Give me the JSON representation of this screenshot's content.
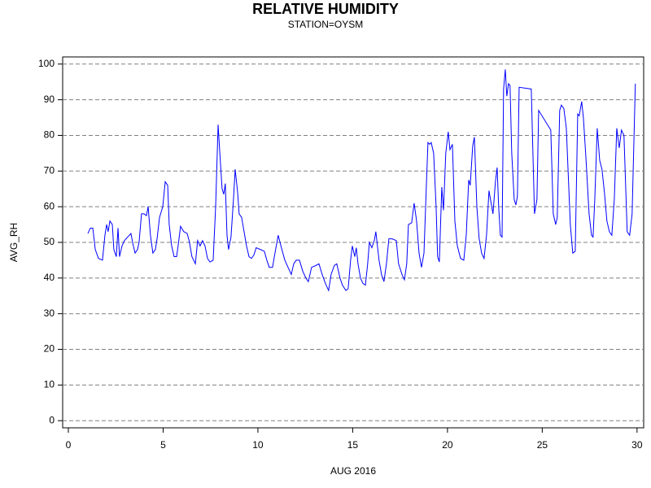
{
  "chart_data": {
    "type": "line",
    "title": "RELATIVE HUMIDITY",
    "subtitle": "STATION=OYSM",
    "x_label": "AUG 2016",
    "y_label": "AVG_RH",
    "xlim": [
      -0.3,
      30.35
    ],
    "ylim": [
      -2,
      102
    ],
    "xticks": [
      0,
      5,
      10,
      15,
      20,
      25,
      30
    ],
    "yticks": [
      0,
      10,
      20,
      30,
      40,
      50,
      60,
      70,
      80,
      90,
      100
    ],
    "grid": true,
    "series": [
      {
        "color": "#0000ff",
        "x": [
          1.03,
          1.16,
          1.29,
          1.42,
          1.59,
          1.8,
          1.93,
          2.02,
          2.1,
          2.19,
          2.32,
          2.4,
          2.53,
          2.62,
          2.7,
          2.83,
          2.96,
          3.13,
          3.3,
          3.43,
          3.52,
          3.65,
          3.73,
          3.86,
          3.99,
          4.12,
          4.21,
          4.33,
          4.46,
          4.59,
          4.68,
          4.81,
          4.98,
          5.11,
          5.24,
          5.32,
          5.45,
          5.58,
          5.71,
          5.79,
          5.92,
          6.09,
          6.27,
          6.39,
          6.52,
          6.7,
          6.82,
          6.95,
          7.08,
          7.21,
          7.34,
          7.47,
          7.64,
          7.77,
          7.9,
          7.98,
          8.11,
          8.2,
          8.28,
          8.37,
          8.45,
          8.58,
          8.71,
          8.8,
          8.93,
          9.01,
          9.14,
          9.27,
          9.4,
          9.53,
          9.66,
          9.79,
          9.91,
          10.13,
          10.34,
          10.47,
          10.6,
          10.77,
          10.9,
          11.07,
          11.24,
          11.42,
          11.59,
          11.76,
          11.89,
          12.02,
          12.19,
          12.36,
          12.53,
          12.66,
          12.83,
          13.05,
          13.22,
          13.39,
          13.56,
          13.73,
          13.86,
          14.03,
          14.16,
          14.33,
          14.46,
          14.64,
          14.76,
          14.89,
          14.98,
          15.11,
          15.19,
          15.28,
          15.41,
          15.54,
          15.67,
          15.79,
          15.88,
          16.01,
          16.14,
          16.22,
          16.39,
          16.52,
          16.65,
          16.78,
          16.91,
          17.08,
          17.3,
          17.42,
          17.6,
          17.73,
          17.85,
          17.94,
          18.11,
          18.24,
          18.37,
          18.5,
          18.63,
          18.76,
          18.88,
          18.97,
          19.06,
          19.14,
          19.27,
          19.4,
          19.48,
          19.57,
          19.7,
          19.79,
          19.91,
          20.04,
          20.13,
          20.26,
          20.39,
          20.52,
          20.69,
          20.86,
          20.99,
          21.12,
          21.2,
          21.33,
          21.42,
          21.55,
          21.67,
          21.8,
          21.93,
          22.06,
          22.19,
          22.27,
          22.4,
          22.53,
          22.62,
          22.7,
          22.79,
          22.88,
          22.96,
          23.05,
          23.13,
          23.22,
          23.3,
          23.39,
          23.52,
          23.61,
          23.69,
          23.78,
          24.42,
          24.59,
          24.72,
          24.81,
          25.45,
          25.58,
          25.71,
          25.79,
          25.92,
          26.01,
          26.14,
          26.27,
          26.48,
          26.61,
          26.74,
          26.87,
          26.95,
          27.08,
          27.17,
          27.3,
          27.47,
          27.6,
          27.68,
          27.77,
          27.9,
          28.03,
          28.15,
          28.28,
          28.41,
          28.54,
          28.67,
          28.8,
          28.93,
          29.06,
          29.18,
          29.31,
          29.48,
          29.61,
          29.74,
          29.91
        ],
        "values": [
          52.5,
          54,
          54,
          48,
          45.5,
          45,
          52,
          55,
          53,
          56,
          55,
          48,
          46,
          54,
          46,
          49,
          50.5,
          51.5,
          52.5,
          49,
          47,
          48,
          50,
          58,
          58,
          57.5,
          60,
          52,
          47,
          48,
          51,
          57,
          60,
          67,
          66,
          55,
          49,
          46,
          46,
          49,
          54.5,
          53,
          52.5,
          50,
          46,
          44,
          50.5,
          49,
          50.5,
          49,
          45.5,
          44.5,
          45,
          60,
          83,
          76,
          65,
          63.5,
          66.5,
          52,
          48,
          51.5,
          62,
          70.5,
          64,
          58,
          57,
          53,
          49,
          46,
          45.5,
          46.5,
          48.5,
          48,
          47.5,
          45,
          43,
          43,
          47,
          52,
          48.5,
          45,
          43,
          41,
          44,
          45,
          45,
          42,
          40,
          39,
          43,
          43.5,
          44,
          41,
          38.5,
          36.5,
          41,
          43.5,
          44,
          40,
          38,
          36.5,
          37,
          45,
          49,
          46,
          48.5,
          44,
          40,
          38.5,
          38,
          44,
          50,
          48.5,
          50.5,
          53,
          45,
          41,
          39,
          44,
          51,
          51,
          50.5,
          44,
          41,
          39.5,
          44,
          55,
          55.5,
          61,
          56,
          47,
          43,
          47,
          65,
          78,
          77.5,
          78,
          75,
          60,
          46,
          44.5,
          65.5,
          59,
          75,
          81,
          76,
          77.5,
          56,
          49,
          45.5,
          45,
          52,
          67.5,
          66,
          77,
          79.5,
          60,
          51,
          47,
          45.5,
          52,
          64.5,
          62,
          58,
          67,
          71,
          60,
          52,
          51.5,
          93,
          98.5,
          91,
          94.5,
          94,
          75,
          62,
          60.5,
          63,
          93.5,
          93,
          58,
          62,
          87,
          81.5,
          58,
          55,
          57,
          87,
          88.5,
          87.5,
          82,
          55,
          47,
          47.5,
          86,
          85.5,
          89.5,
          85,
          74,
          58,
          52,
          51.5,
          62,
          82,
          73,
          70.5,
          64,
          56,
          53,
          52,
          62,
          82,
          76.5,
          81.5,
          80,
          53,
          52,
          58,
          94.5
        ]
      }
    ]
  }
}
